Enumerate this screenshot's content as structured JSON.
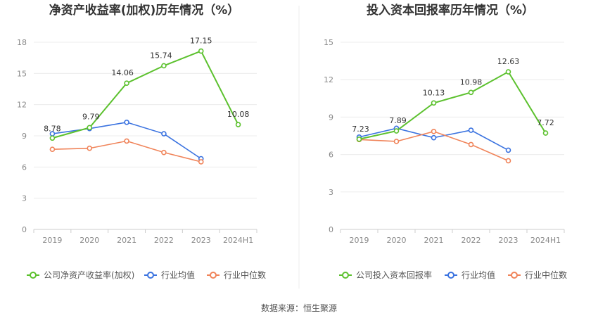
{
  "source": "数据来源：恒生聚源",
  "colors": {
    "company": "#5cc12e",
    "avg": "#3b73e0",
    "median": "#f0845a"
  },
  "chart_data": [
    {
      "type": "line",
      "title": "净资产收益率(加权)历年情况（%）",
      "categories": [
        "2019",
        "2020",
        "2021",
        "2022",
        "2023",
        "2024H1"
      ],
      "ylim": [
        0,
        18
      ],
      "yticks": [
        0,
        3,
        6,
        9,
        12,
        15,
        18
      ],
      "grid": true,
      "legend_position": "bottom",
      "series": [
        {
          "name": "公司净资产收益率(加权)",
          "key": "company",
          "values": [
            8.78,
            9.79,
            14.06,
            15.74,
            17.15,
            10.08
          ],
          "labels": true
        },
        {
          "name": "行业均值",
          "key": "avg",
          "values": [
            9.2,
            9.7,
            10.3,
            9.2,
            6.8,
            null
          ],
          "labels": false
        },
        {
          "name": "行业中位数",
          "key": "median",
          "values": [
            7.7,
            7.8,
            8.5,
            7.4,
            6.5,
            null
          ],
          "labels": false
        }
      ]
    },
    {
      "type": "line",
      "title": "投入资本回报率历年情况（%）",
      "categories": [
        "2019",
        "2020",
        "2021",
        "2022",
        "2023",
        "2024H1"
      ],
      "ylim": [
        0,
        15
      ],
      "yticks": [
        0,
        3,
        6,
        9,
        12,
        15
      ],
      "grid": true,
      "legend_position": "bottom",
      "series": [
        {
          "name": "公司投入资本回报率",
          "key": "company",
          "values": [
            7.23,
            7.89,
            10.13,
            10.98,
            12.63,
            7.72
          ],
          "labels": true
        },
        {
          "name": "行业均值",
          "key": "avg",
          "values": [
            7.4,
            8.1,
            7.35,
            7.95,
            6.35,
            null
          ],
          "labels": false
        },
        {
          "name": "行业中位数",
          "key": "median",
          "values": [
            7.2,
            7.05,
            7.85,
            6.8,
            5.5,
            null
          ],
          "labels": false
        }
      ]
    }
  ]
}
